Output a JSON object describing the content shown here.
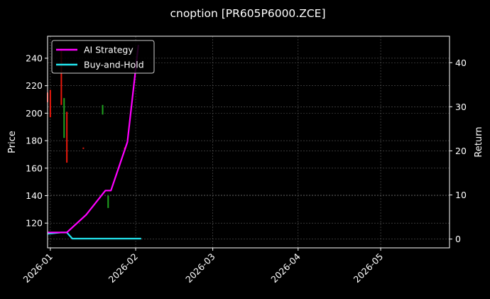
{
  "chart_data": {
    "type": "line",
    "title": "cnoption [PR605P6000.ZCE]",
    "ylabel_left": "Price",
    "ylabel_right": "Return",
    "x_type": "date",
    "x_range": [
      "2025-12-31",
      "2026-05-26"
    ],
    "x_ticks": [
      {
        "date": "2026-01-01",
        "label": "2026-01"
      },
      {
        "date": "2026-02-01",
        "label": "2026-02"
      },
      {
        "date": "2026-03-01",
        "label": "2026-03"
      },
      {
        "date": "2026-04-01",
        "label": "2026-04"
      },
      {
        "date": "2026-05-01",
        "label": "2026-05"
      }
    ],
    "y_left": {
      "range": [
        102,
        256
      ],
      "ticks": [
        120,
        140,
        160,
        180,
        200,
        220,
        240
      ]
    },
    "y_right": {
      "range": [
        -2,
        46
      ],
      "ticks": [
        0,
        10,
        20,
        30,
        40
      ]
    },
    "grid": true,
    "legend_position": "top-left",
    "series": [
      {
        "name": "AI Strategy",
        "axis": "right",
        "color": "#ff00ff",
        "x": [
          "2025-12-31",
          "2026-01-05",
          "2026-01-07",
          "2026-01-14",
          "2026-01-21",
          "2026-01-23",
          "2026-01-29",
          "2026-02-02"
        ],
        "y": [
          1.5,
          1.5,
          1.5,
          5.5,
          11,
          11,
          22,
          44
        ]
      },
      {
        "name": "Buy-and-Hold",
        "axis": "right",
        "color": "#22e5ee",
        "x": [
          "2025-12-31",
          "2026-01-05",
          "2026-01-07",
          "2026-01-09",
          "2026-01-15",
          "2026-01-22",
          "2026-02-03"
        ],
        "y": [
          1.2,
          1.5,
          1.5,
          0.1,
          0.1,
          0.1,
          0.1
        ]
      }
    ],
    "candles": [
      {
        "date": "2025-12-31",
        "low": 208,
        "high": 215,
        "up": false
      },
      {
        "date": "2026-01-01",
        "low": 197,
        "high": 217,
        "up": false
      },
      {
        "date": "2026-01-05",
        "low": 206,
        "high": 247,
        "up": false
      },
      {
        "date": "2026-01-06",
        "low": 182,
        "high": 211,
        "up": true
      },
      {
        "date": "2026-01-07",
        "low": 164,
        "high": 201,
        "up": false
      },
      {
        "date": "2026-01-13",
        "low": 174,
        "high": 175,
        "up": false
      },
      {
        "date": "2026-01-20",
        "low": 199,
        "high": 206,
        "up": true
      },
      {
        "date": "2026-01-22",
        "low": 131,
        "high": 140,
        "up": true
      },
      {
        "date": "2026-01-28",
        "low": 174,
        "high": 175,
        "up": false
      }
    ],
    "candle_colors": {
      "up": "#1fa31f",
      "down": "#e8180c"
    }
  }
}
